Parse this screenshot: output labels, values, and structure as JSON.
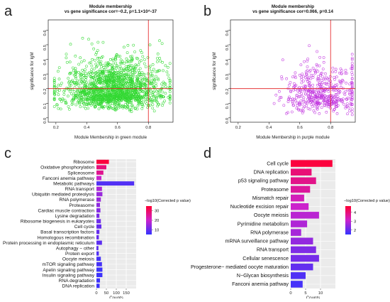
{
  "figure": {
    "panels": [
      {
        "letter": "a"
      },
      {
        "letter": "b"
      },
      {
        "letter": "c"
      },
      {
        "letter": "d"
      }
    ]
  },
  "chart_data": [
    {
      "panel": "a",
      "type": "scatter",
      "title": "Module membership",
      "subtitle": "vs gene significance cor=−0.2, p=1.1×10^-37",
      "xlabel": "Module Membership in green module",
      "ylabel": "significance for IgM",
      "xlim": [
        0.15,
        0.96
      ],
      "ylim": [
        -0.03,
        0.67
      ],
      "xticks": [
        0.2,
        0.4,
        0.6,
        0.8
      ],
      "yticks": [
        0.0,
        0.1,
        0.2,
        0.3,
        0.4,
        0.5,
        0.6
      ],
      "point_color": "#33d933",
      "reference_lines": {
        "vertical_x": 0.8,
        "horizontal_y": 0.2,
        "color": "#e31a1c"
      },
      "approx_point_count": 1600,
      "density": {
        "x_center": 0.58,
        "x_spread": 0.16,
        "y_center": 0.21,
        "y_spread": 0.12
      }
    },
    {
      "panel": "b",
      "type": "scatter",
      "title": "Module membership",
      "subtitle": "vs gene significance cor=0.066, p=0.14",
      "xlabel": "Module Membership in purple module",
      "ylabel": "significance for IgM",
      "xlim": [
        0.15,
        0.96
      ],
      "ylim": [
        -0.03,
        0.67
      ],
      "xticks": [
        0.2,
        0.4,
        0.6,
        0.8
      ],
      "yticks": [
        0.0,
        0.1,
        0.2,
        0.3,
        0.4,
        0.5,
        0.6
      ],
      "point_color": "#c33be0",
      "reference_lines": {
        "vertical_x": 0.8,
        "horizontal_y": 0.2,
        "color": "#e31a1c"
      },
      "approx_point_count": 480,
      "density": {
        "x_center": 0.74,
        "x_spread": 0.12,
        "y_center": 0.18,
        "y_spread": 0.12
      }
    },
    {
      "panel": "c",
      "type": "bar",
      "orientation": "horizontal",
      "xlabel": "Counts",
      "xlim": [
        0,
        200
      ],
      "xticks": [
        0,
        50,
        100,
        150
      ],
      "legend_title": "−log10(Corrected p value)",
      "legend_ticks": [
        10,
        20,
        30
      ],
      "color_scale": {
        "low": "#3333ff",
        "mid": "#cc22cc",
        "high": "#ff0033",
        "min": 5,
        "max": 35
      },
      "categories": [
        "Ribosome",
        "Oxidative phosphorylation",
        "Spliceosome",
        "Fanconi anemia pathway",
        "Metabolic pathways",
        "RNA transport",
        "Ubiquitin mediated proteolysis",
        "RNA polymerase",
        "Proteasome",
        "Cardiac muscle contraction",
        "Lysine degradation",
        "Ribosome biogenesis in eukaryotes",
        "Cell cycle",
        "Basal transcription factors",
        "Homologous recombination",
        "Protein processing in endoplasmic reticulum",
        "Autophagy − other",
        "Protein export",
        "Oocyte meiosis",
        "mTOR signaling pathway",
        "Apelin signaling pathway",
        "Insulin signaling pathway",
        "RNA degradation",
        "DNA replication"
      ],
      "values": [
        63,
        50,
        35,
        25,
        190,
        28,
        30,
        22,
        18,
        20,
        15,
        22,
        25,
        15,
        12,
        28,
        10,
        12,
        22,
        28,
        30,
        30,
        18,
        16
      ],
      "significance": [
        34,
        28,
        26,
        20,
        8,
        17,
        15,
        15,
        14,
        13,
        12,
        11,
        10,
        10,
        10,
        9,
        9,
        8,
        7,
        7,
        6,
        6,
        6,
        6
      ]
    },
    {
      "panel": "d",
      "type": "bar",
      "orientation": "horizontal",
      "xlabel": "Counts",
      "xlim": [
        0,
        15
      ],
      "xticks": [
        0,
        5,
        10
      ],
      "legend_title": "−log10(Corrected p value)",
      "legend_ticks": [
        2,
        3,
        4
      ],
      "color_scale": {
        "low": "#3333ff",
        "mid": "#cc22cc",
        "high": "#ff0033",
        "min": 1.5,
        "max": 4.7
      },
      "categories": [
        "Cell cycle",
        "DNA replication",
        "p53 signaling pathway",
        "Proteasome",
        "Mismatch repair",
        "Nucleotide excision repair",
        "Oocyte meiosis",
        "Pyrimidine metabolism",
        "RNA polymerase",
        "mRNA surveillance pathway",
        "RNA transport",
        "Cellular senescence",
        "Progesterone− mediated oocyte maturation",
        "N−Glycan biosynthesis",
        "Fanconi anemia pathway"
      ],
      "values": [
        14,
        7,
        8.5,
        6.5,
        4.5,
        6,
        9.5,
        5.5,
        3.5,
        7.5,
        8.5,
        9.5,
        7.5,
        5,
        4
      ],
      "significance": [
        4.6,
        4.0,
        3.8,
        3.6,
        3.3,
        3.1,
        2.9,
        2.8,
        2.7,
        2.5,
        2.3,
        2.2,
        2.0,
        1.8,
        1.7
      ]
    }
  ]
}
